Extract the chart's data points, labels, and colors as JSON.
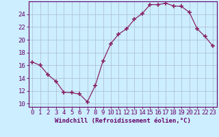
{
  "x": [
    0,
    1,
    2,
    3,
    4,
    5,
    6,
    7,
    8,
    9,
    10,
    11,
    12,
    13,
    14,
    15,
    16,
    17,
    18,
    19,
    20,
    21,
    22,
    23
  ],
  "y": [
    16.5,
    16.0,
    14.5,
    13.5,
    11.8,
    11.7,
    11.5,
    10.3,
    12.8,
    16.7,
    19.4,
    20.9,
    21.7,
    23.2,
    24.1,
    25.5,
    25.5,
    25.7,
    25.3,
    25.2,
    24.3,
    21.7,
    20.5,
    19.0
  ],
  "line_color": "#882266",
  "marker": "+",
  "bg_color": "#cceeff",
  "grid_color": "#aabbcc",
  "xlabel": "Windchill (Refroidissement éolien,°C)",
  "ylabel_ticks": [
    10,
    12,
    14,
    16,
    18,
    20,
    22,
    24
  ],
  "xlim": [
    -0.5,
    23.5
  ],
  "ylim": [
    9.5,
    26.0
  ],
  "axis_color": "#660066",
  "tick_color": "#660066",
  "xlabel_color": "#660066",
  "xlabel_fontsize": 6.5,
  "tick_fontsize": 6.5
}
